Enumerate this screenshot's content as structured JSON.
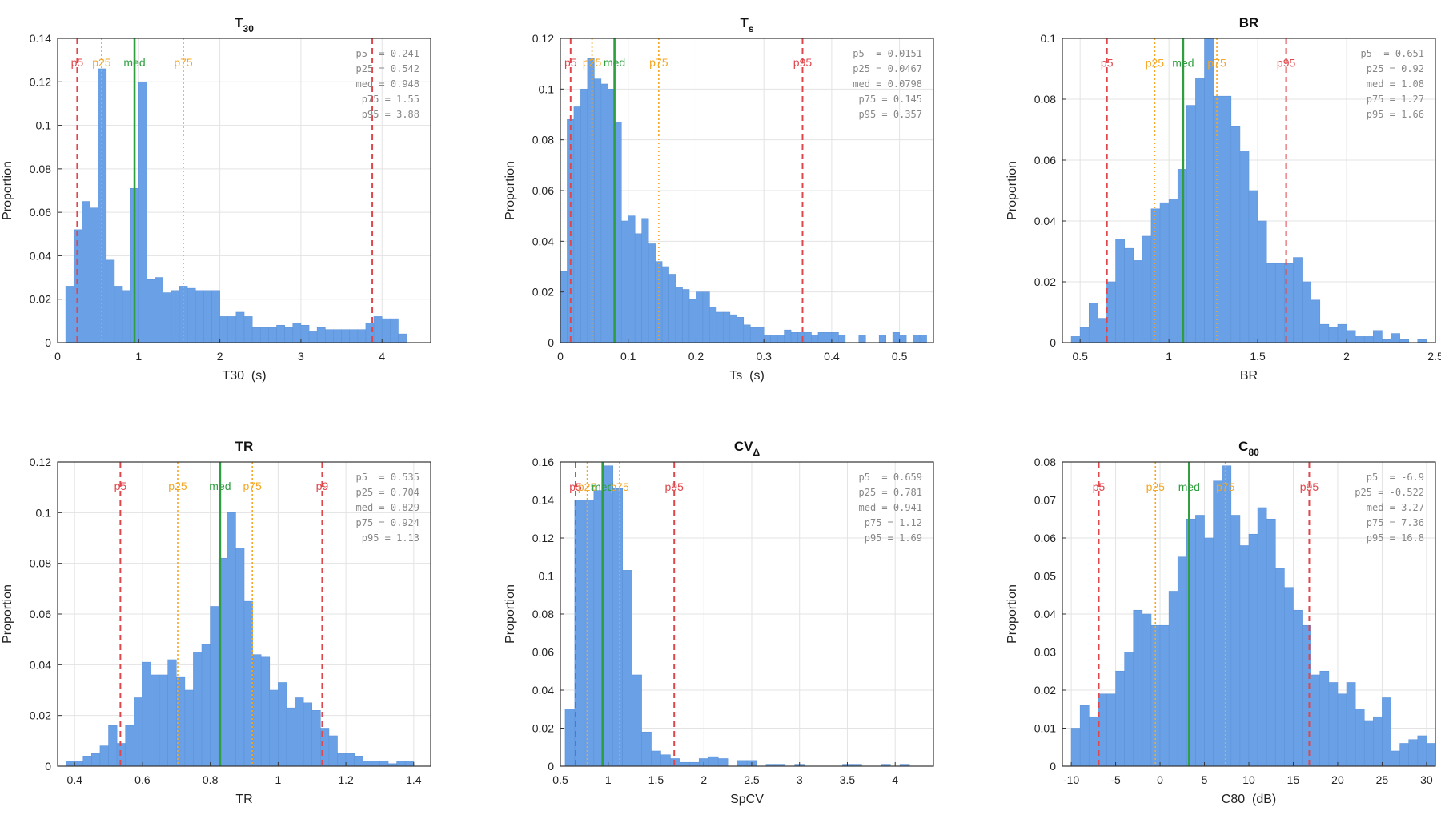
{
  "colors": {
    "bar": "#6aa1e6",
    "p5_p95": "#e0474c",
    "p25_p75": "#f5a623",
    "median": "#2e9e3f",
    "stats_text": "#888888"
  },
  "chart_data": [
    {
      "type": "histogram",
      "title": "T",
      "title_sub": "30",
      "xlabel": "T30  (s)",
      "ylabel": "Proportion",
      "xlim": [
        0,
        4.6
      ],
      "ylim": [
        0,
        0.14
      ],
      "xticks": [
        0,
        1,
        2,
        3,
        4
      ],
      "xtick_labels": [
        "0",
        "1",
        "2",
        "3",
        "4"
      ],
      "yticks": [
        0,
        0.02,
        0.04,
        0.06,
        0.08,
        0.1,
        0.12,
        0.14
      ],
      "ytick_labels": [
        "0",
        "0.02",
        "0.04",
        "0.06",
        "0.08",
        "0.1",
        "0.12",
        "0.14"
      ],
      "bin_start": 0.1,
      "bin_width": 0.1,
      "values": [
        0.026,
        0.052,
        0.065,
        0.062,
        0.126,
        0.038,
        0.026,
        0.024,
        0.071,
        0.12,
        0.029,
        0.03,
        0.023,
        0.024,
        0.026,
        0.025,
        0.024,
        0.024,
        0.024,
        0.012,
        0.012,
        0.014,
        0.012,
        0.007,
        0.007,
        0.007,
        0.008,
        0.007,
        0.009,
        0.008,
        0.005,
        0.007,
        0.006,
        0.006,
        0.006,
        0.006,
        0.006,
        0.009,
        0.012,
        0.011,
        0.011,
        0.004
      ],
      "percentiles": [
        {
          "name": "p5",
          "label": "p5",
          "value": 0.241,
          "kind": "outer"
        },
        {
          "name": "p25",
          "label": "p25",
          "value": 0.542,
          "kind": "inner"
        },
        {
          "name": "med",
          "label": "med",
          "value": 0.948,
          "kind": "median"
        },
        {
          "name": "p75",
          "label": "p75",
          "value": 1.55,
          "kind": "inner"
        },
        {
          "name": "p95",
          "label": "",
          "value": 3.88,
          "kind": "outer"
        }
      ],
      "stats_lines": [
        "p5  = 0.241",
        "p25 = 0.542",
        "med = 0.948",
        "p75 = 1.55",
        "p95 = 3.88"
      ],
      "label_y_value": 0.129
    },
    {
      "type": "histogram",
      "title": "T",
      "title_sub": "s",
      "xlabel": "Ts  (s)",
      "ylabel": "Proportion",
      "xlim": [
        0,
        0.55
      ],
      "ylim": [
        0,
        0.12
      ],
      "xticks": [
        0,
        0.1,
        0.2,
        0.3,
        0.4,
        0.5
      ],
      "xtick_labels": [
        "0",
        "0.1",
        "0.2",
        "0.3",
        "0.4",
        "0.5"
      ],
      "yticks": [
        0,
        0.02,
        0.04,
        0.06,
        0.08,
        0.1,
        0.12
      ],
      "ytick_labels": [
        "0",
        "0.02",
        "0.04",
        "0.06",
        "0.08",
        "0.1",
        "0.12"
      ],
      "bin_start": 0,
      "bin_width": 0.01,
      "values": [
        0.028,
        0.088,
        0.093,
        0.1,
        0.112,
        0.104,
        0.102,
        0.1,
        0.087,
        0.048,
        0.05,
        0.043,
        0.049,
        0.039,
        0.032,
        0.03,
        0.027,
        0.022,
        0.021,
        0.017,
        0.02,
        0.02,
        0.014,
        0.012,
        0.012,
        0.011,
        0.01,
        0.007,
        0.006,
        0.006,
        0.003,
        0.003,
        0.003,
        0.005,
        0.004,
        0.004,
        0.004,
        0.003,
        0.004,
        0.004,
        0.004,
        0.003,
        0,
        0,
        0.003,
        0,
        0,
        0.003,
        0,
        0.004,
        0.003,
        0,
        0.003,
        0.003
      ],
      "percentiles": [
        {
          "name": "p5",
          "label": "p5",
          "value": 0.0151,
          "kind": "outer"
        },
        {
          "name": "p25",
          "label": "p25",
          "value": 0.0467,
          "kind": "inner"
        },
        {
          "name": "med",
          "label": "med",
          "value": 0.0798,
          "kind": "median"
        },
        {
          "name": "p75",
          "label": "p75",
          "value": 0.145,
          "kind": "inner"
        },
        {
          "name": "p95",
          "label": "p95",
          "value": 0.357,
          "kind": "outer"
        }
      ],
      "stats_lines": [
        "p5  = 0.0151",
        "p25 = 0.0467",
        "med = 0.0798",
        "p75 = 0.145",
        "p95 = 0.357"
      ],
      "label_y_value": 0.1105
    },
    {
      "type": "histogram",
      "title": "BR",
      "title_sub": "",
      "xlabel": "BR",
      "ylabel": "Proportion",
      "xlim": [
        0.4,
        2.5
      ],
      "ylim": [
        0,
        0.1
      ],
      "xticks": [
        0.5,
        1,
        1.5,
        2,
        2.5
      ],
      "xtick_labels": [
        "0.5",
        "1",
        "1.5",
        "2",
        "2.5"
      ],
      "yticks": [
        0,
        0.02,
        0.04,
        0.06,
        0.08,
        0.1
      ],
      "ytick_labels": [
        "0",
        "0.02",
        "0.04",
        "0.06",
        "0.08",
        "0.1"
      ],
      "bin_start": 0.45,
      "bin_width": 0.05,
      "values": [
        0.002,
        0.005,
        0.013,
        0.008,
        0.02,
        0.034,
        0.031,
        0.027,
        0.035,
        0.044,
        0.046,
        0.047,
        0.057,
        0.078,
        0.087,
        0.1,
        0.081,
        0.081,
        0.071,
        0.063,
        0.05,
        0.04,
        0.026,
        0.026,
        0.026,
        0.028,
        0.02,
        0.014,
        0.006,
        0.005,
        0.006,
        0.004,
        0.002,
        0.002,
        0.004,
        0.001,
        0.003,
        0.001,
        0,
        0.001
      ],
      "percentiles": [
        {
          "name": "p5",
          "label": "p5",
          "value": 0.651,
          "kind": "outer"
        },
        {
          "name": "p25",
          "label": "p25",
          "value": 0.92,
          "kind": "inner"
        },
        {
          "name": "med",
          "label": "med",
          "value": 1.08,
          "kind": "median"
        },
        {
          "name": "p75",
          "label": "p75",
          "value": 1.27,
          "kind": "inner"
        },
        {
          "name": "p95",
          "label": "p95",
          "value": 1.66,
          "kind": "outer"
        }
      ],
      "stats_lines": [
        "p5  = 0.651",
        "p25 = 0.92",
        "med = 1.08",
        "p75 = 1.27",
        "p95 = 1.66"
      ],
      "label_y_value": 0.092
    },
    {
      "type": "histogram",
      "title": "TR",
      "title_sub": "",
      "xlabel": "TR",
      "ylabel": "Proportion",
      "xlim": [
        0.35,
        1.45
      ],
      "ylim": [
        0,
        0.12
      ],
      "xticks": [
        0.4,
        0.6,
        0.8,
        1,
        1.2,
        1.4
      ],
      "xtick_labels": [
        "0.4",
        "0.6",
        "0.8",
        "1",
        "1.2",
        "1.4"
      ],
      "bin_start": 0.375,
      "bin_width": 0.025,
      "yticks": [
        0,
        0.02,
        0.04,
        0.06,
        0.08,
        0.1,
        0.12
      ],
      "ytick_labels": [
        "0",
        "0.02",
        "0.04",
        "0.06",
        "0.08",
        "0.1",
        "0.12"
      ],
      "values": [
        0.002,
        0.002,
        0.004,
        0.005,
        0.008,
        0.016,
        0.009,
        0.016,
        0.027,
        0.041,
        0.036,
        0.036,
        0.042,
        0.035,
        0.03,
        0.045,
        0.048,
        0.063,
        0.082,
        0.1,
        0.086,
        0.065,
        0.044,
        0.043,
        0.03,
        0.033,
        0.023,
        0.027,
        0.025,
        0.022,
        0.015,
        0.012,
        0.005,
        0.005,
        0.004,
        0.002,
        0.002,
        0.002,
        0.001,
        0.002,
        0.002
      ],
      "percentiles": [
        {
          "name": "p5",
          "label": "p5",
          "value": 0.535,
          "kind": "outer"
        },
        {
          "name": "p25",
          "label": "p25",
          "value": 0.704,
          "kind": "inner"
        },
        {
          "name": "med",
          "label": "med",
          "value": 0.829,
          "kind": "median"
        },
        {
          "name": "p75",
          "label": "p75",
          "value": 0.924,
          "kind": "inner"
        },
        {
          "name": "p95",
          "label": "p9",
          "value": 1.13,
          "kind": "outer"
        }
      ],
      "stats_lines": [
        "p5  = 0.535",
        "p25 = 0.704",
        "med = 0.829",
        "p75 = 0.924",
        "p95 = 1.13"
      ],
      "label_y_value": 0.1105
    },
    {
      "type": "histogram",
      "title": "CV",
      "title_sub": "Δ",
      "xlabel": "SpCV",
      "ylabel": "Proportion",
      "xlim": [
        0.5,
        4.4
      ],
      "ylim": [
        0,
        0.16
      ],
      "xticks": [
        0.5,
        1,
        1.5,
        2,
        2.5,
        3,
        3.5,
        4
      ],
      "xtick_labels": [
        "0.5",
        "1",
        "1.5",
        "2",
        "2.5",
        "3",
        "3.5",
        "4"
      ],
      "yticks": [
        0,
        0.02,
        0.04,
        0.06,
        0.08,
        0.1,
        0.12,
        0.14,
        0.16
      ],
      "ytick_labels": [
        "0",
        "0.02",
        "0.04",
        "0.06",
        "0.08",
        "0.1",
        "0.12",
        "0.14",
        "0.16"
      ],
      "bin_start": 0.55,
      "bin_width": 0.1,
      "values": [
        0.03,
        0.14,
        0.14,
        0.145,
        0.158,
        0.146,
        0.103,
        0.048,
        0.018,
        0.008,
        0.006,
        0.004,
        0.002,
        0.002,
        0.004,
        0.005,
        0.004,
        0,
        0.003,
        0.003,
        0,
        0.001,
        0.001,
        0,
        0.001,
        0,
        0,
        0,
        0,
        0.001,
        0.001,
        0,
        0,
        0.001,
        0,
        0.001,
        0
      ],
      "percentiles": [
        {
          "name": "p5",
          "label": "p5",
          "value": 0.659,
          "kind": "outer"
        },
        {
          "name": "p25",
          "label": "p25",
          "value": 0.781,
          "kind": "inner"
        },
        {
          "name": "med",
          "label": "med",
          "value": 0.941,
          "kind": "median"
        },
        {
          "name": "p75",
          "label": "p75",
          "value": 1.12,
          "kind": "inner"
        },
        {
          "name": "p95",
          "label": "p95",
          "value": 1.69,
          "kind": "outer"
        }
      ],
      "stats_lines": [
        "p5  = 0.659",
        "p25 = 0.781",
        "med = 0.941",
        "p75 = 1.12",
        "p95 = 1.69"
      ],
      "label_y_value": 0.147
    },
    {
      "type": "histogram",
      "title": "C",
      "title_sub": "80",
      "xlabel": "C80  (dB)",
      "ylabel": "Proportion",
      "xlim": [
        -11,
        31
      ],
      "ylim": [
        0,
        0.08
      ],
      "xticks": [
        -10,
        -5,
        0,
        5,
        10,
        15,
        20,
        25,
        30
      ],
      "xtick_labels": [
        "-10",
        "-5",
        "0",
        "5",
        "10",
        "15",
        "20",
        "25",
        "30"
      ],
      "yticks": [
        0,
        0.01,
        0.02,
        0.03,
        0.04,
        0.05,
        0.06,
        0.07,
        0.08
      ],
      "ytick_labels": [
        "0",
        "0.01",
        "0.02",
        "0.03",
        "0.04",
        "0.05",
        "0.06",
        "0.07",
        "0.08"
      ],
      "bin_start": -10,
      "bin_width": 1,
      "values": [
        0.01,
        0.016,
        0.013,
        0.019,
        0.019,
        0.025,
        0.03,
        0.041,
        0.04,
        0.037,
        0.037,
        0.046,
        0.055,
        0.065,
        0.066,
        0.06,
        0.075,
        0.079,
        0.066,
        0.058,
        0.061,
        0.068,
        0.065,
        0.052,
        0.047,
        0.041,
        0.037,
        0.024,
        0.025,
        0.022,
        0.019,
        0.022,
        0.015,
        0.012,
        0.013,
        0.018,
        0.004,
        0.006,
        0.007,
        0.008,
        0.006,
        0.005,
        0.002,
        0.001,
        0.001,
        0.002,
        0.004,
        0.003,
        0.001,
        0,
        0.001,
        0.002,
        0.001,
        0,
        0.002
      ],
      "percentiles": [
        {
          "name": "p5",
          "label": "p5",
          "value": -6.9,
          "kind": "outer"
        },
        {
          "name": "p25",
          "label": "p25",
          "value": -0.522,
          "kind": "inner"
        },
        {
          "name": "med",
          "label": "med",
          "value": 3.27,
          "kind": "median"
        },
        {
          "name": "p75",
          "label": "p75",
          "value": 7.36,
          "kind": "inner"
        },
        {
          "name": "p95",
          "label": "p95",
          "value": 16.8,
          "kind": "outer"
        }
      ],
      "stats_lines": [
        "p5  = -6.9",
        "p25 = -0.522",
        "med = 3.27",
        "p75 = 7.36",
        "p95 = 16.8"
      ],
      "label_y_value": 0.0735
    }
  ]
}
